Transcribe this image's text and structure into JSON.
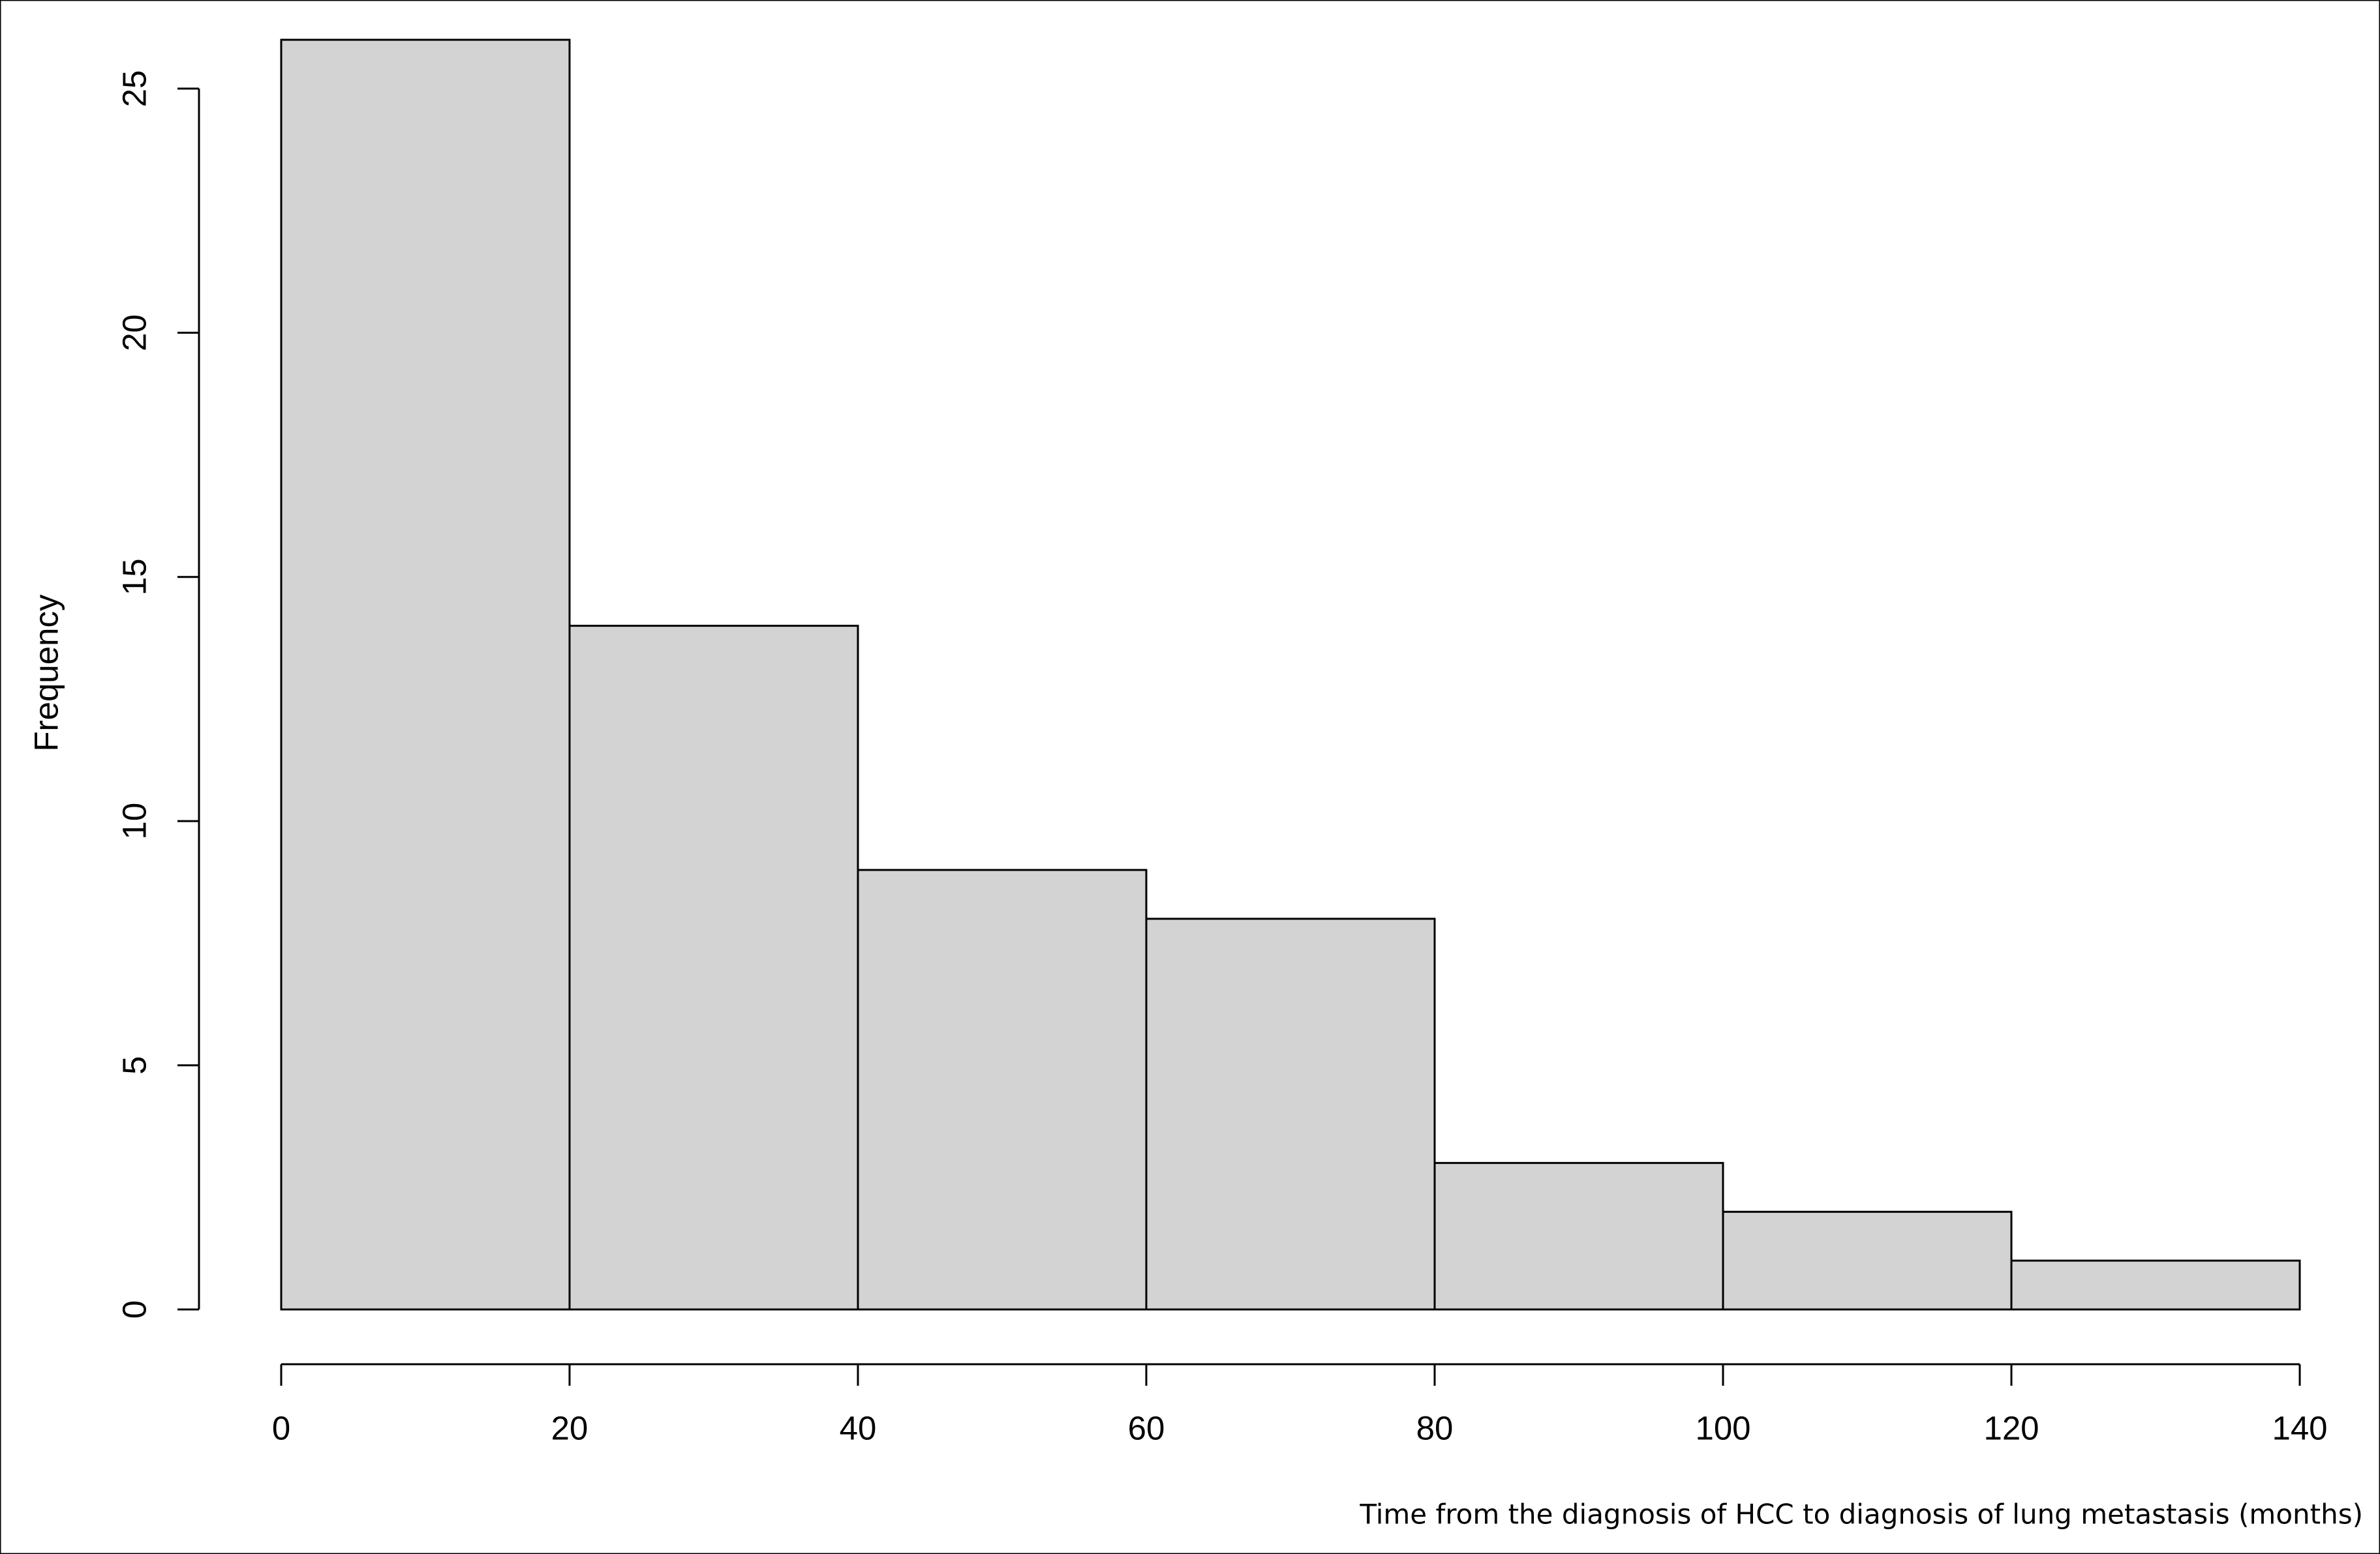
{
  "chart_data": {
    "type": "histogram",
    "xlabel": "Time from the diagnosis of HCC to diagnosis of lung metastasis (months)",
    "ylabel": "Frequency",
    "bins": [
      0,
      20,
      40,
      60,
      80,
      100,
      120,
      140
    ],
    "values": [
      26,
      14,
      9,
      8,
      3,
      2,
      1
    ],
    "color": "#d3d3d3",
    "xlim": [
      0,
      140
    ],
    "xticks": [
      0,
      20,
      40,
      60,
      80,
      100,
      120,
      140
    ],
    "ylim": [
      0,
      26
    ],
    "yticks": [
      0,
      5,
      10,
      15,
      20,
      25
    ],
    "grid": false
  }
}
